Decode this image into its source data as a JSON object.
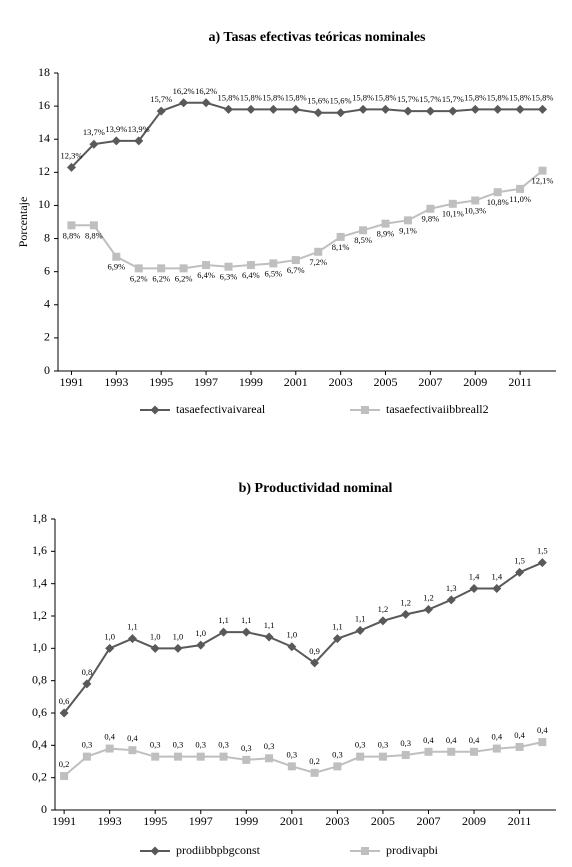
{
  "chart_data": [
    {
      "type": "line",
      "title": "a) Tasas efectivas teóricas nominales",
      "y_label": "Porcentaje",
      "x": [
        1991,
        1992,
        1993,
        1994,
        1995,
        1996,
        1997,
        1998,
        1999,
        2000,
        2001,
        2002,
        2003,
        2004,
        2005,
        2006,
        2007,
        2008,
        2009,
        2010,
        2011,
        2012
      ],
      "xlim": [
        1990.4,
        2012.6
      ],
      "xticks": [
        1991,
        1993,
        1995,
        1997,
        1999,
        2001,
        2003,
        2005,
        2007,
        2009,
        2011
      ],
      "ylim": [
        0,
        18
      ],
      "yticks": [
        0,
        2,
        4,
        6,
        8,
        10,
        12,
        14,
        16,
        18
      ],
      "series": [
        {
          "name": "tasaefectivaivareal",
          "color": "#595959",
          "marker": "diamond",
          "values": [
            12.3,
            13.7,
            13.9,
            13.9,
            15.7,
            16.2,
            16.2,
            15.8,
            15.8,
            15.8,
            15.8,
            15.6,
            15.6,
            15.8,
            15.8,
            15.7,
            15.7,
            15.7,
            15.8,
            15.8,
            15.8,
            15.8
          ],
          "value_labels": [
            "12,3%",
            "13,7%",
            "13,9%",
            "13,9%",
            "15,7%",
            "16,2%",
            "16,2%",
            "15,8%",
            "15,8%",
            "15,8%",
            "15,8%",
            "15,6%",
            "15,6%",
            "15,8%",
            "15,8%",
            "15,7%",
            "15,7%",
            "15,7%",
            "15,8%",
            "15,8%",
            "15,8%",
            "15,8%"
          ]
        },
        {
          "name": "tasaefectivaiibbreall2",
          "color": "#bfbfbf",
          "marker": "square",
          "values": [
            8.8,
            8.8,
            6.9,
            6.2,
            6.2,
            6.2,
            6.4,
            6.3,
            6.4,
            6.5,
            6.7,
            7.2,
            8.1,
            8.5,
            8.9,
            9.1,
            9.8,
            10.1,
            10.3,
            10.8,
            11.0,
            12.1
          ],
          "value_labels": [
            "8,8%",
            "8,8%",
            "6,9%",
            "6,2%",
            "6,2%",
            "6,2%",
            "6,4%",
            "6,3%",
            "6,4%",
            "6,5%",
            "6,7%",
            "7,2%",
            "8,1%",
            "8,5%",
            "8,9%",
            "9,1%",
            "9,8%",
            "10,1%",
            "10,3%",
            "10,8%",
            "11,0%",
            "12,1%"
          ]
        }
      ]
    },
    {
      "type": "line",
      "title": "b) Productividad nominal",
      "x": [
        1991,
        1992,
        1993,
        1994,
        1995,
        1996,
        1997,
        1998,
        1999,
        2000,
        2001,
        2002,
        2003,
        2004,
        2005,
        2006,
        2007,
        2008,
        2009,
        2010,
        2011,
        2012
      ],
      "xlim": [
        1990.6,
        2012.6
      ],
      "xticks": [
        1991,
        1993,
        1995,
        1997,
        1999,
        2001,
        2003,
        2005,
        2007,
        2009,
        2011
      ],
      "ylim": [
        0,
        1.8
      ],
      "yticks": [
        0,
        {
          "value": 0.2,
          "label": "0,2"
        },
        {
          "value": 0.4,
          "label": "0,4"
        },
        {
          "value": 0.6,
          "label": "0,6"
        },
        {
          "value": 0.8,
          "label": "0,8"
        },
        {
          "value": 1.0,
          "label": "1,0"
        },
        {
          "value": 1.2,
          "label": "1,2"
        },
        {
          "value": 1.4,
          "label": "1,4"
        },
        {
          "value": 1.6,
          "label": "1,6"
        },
        {
          "value": 1.8,
          "label": "1,8"
        }
      ],
      "series": [
        {
          "name": "prodiibbpbgconst",
          "color": "#595959",
          "marker": "diamond",
          "values": [
            0.6,
            0.78,
            1.0,
            1.06,
            1.0,
            1.0,
            1.02,
            1.1,
            1.1,
            1.07,
            1.01,
            0.91,
            1.06,
            1.11,
            1.17,
            1.21,
            1.24,
            1.3,
            1.37,
            1.37,
            1.47,
            1.53
          ],
          "value_labels": [
            "0,6",
            "0,8",
            "1,0",
            "1,1",
            "1,0",
            "1,0",
            "1,0",
            "1,1",
            "1,1",
            "1,1",
            "1,0",
            "0,9",
            "1,1",
            "1,1",
            "1,2",
            "1,2",
            "1,2",
            "1,3",
            "1,4",
            "1,4",
            "1,5",
            "1,5"
          ]
        },
        {
          "name": "prodivapbi",
          "color": "#bfbfbf",
          "marker": "square",
          "values": [
            0.21,
            0.33,
            0.38,
            0.37,
            0.33,
            0.33,
            0.33,
            0.33,
            0.31,
            0.32,
            0.27,
            0.23,
            0.27,
            0.33,
            0.33,
            0.34,
            0.36,
            0.36,
            0.36,
            0.38,
            0.39,
            0.42
          ],
          "value_labels": [
            "0,2",
            "0,3",
            "0,4",
            "0,4",
            "0,3",
            "0,3",
            "0,3",
            "0,3",
            "0,3",
            "0,3",
            "0,3",
            "0,2",
            "0,3",
            "0,3",
            "0,3",
            "0,3",
            "0,4",
            "0,4",
            "0,4",
            "0,4",
            "0,4",
            "0,4"
          ]
        }
      ]
    }
  ]
}
